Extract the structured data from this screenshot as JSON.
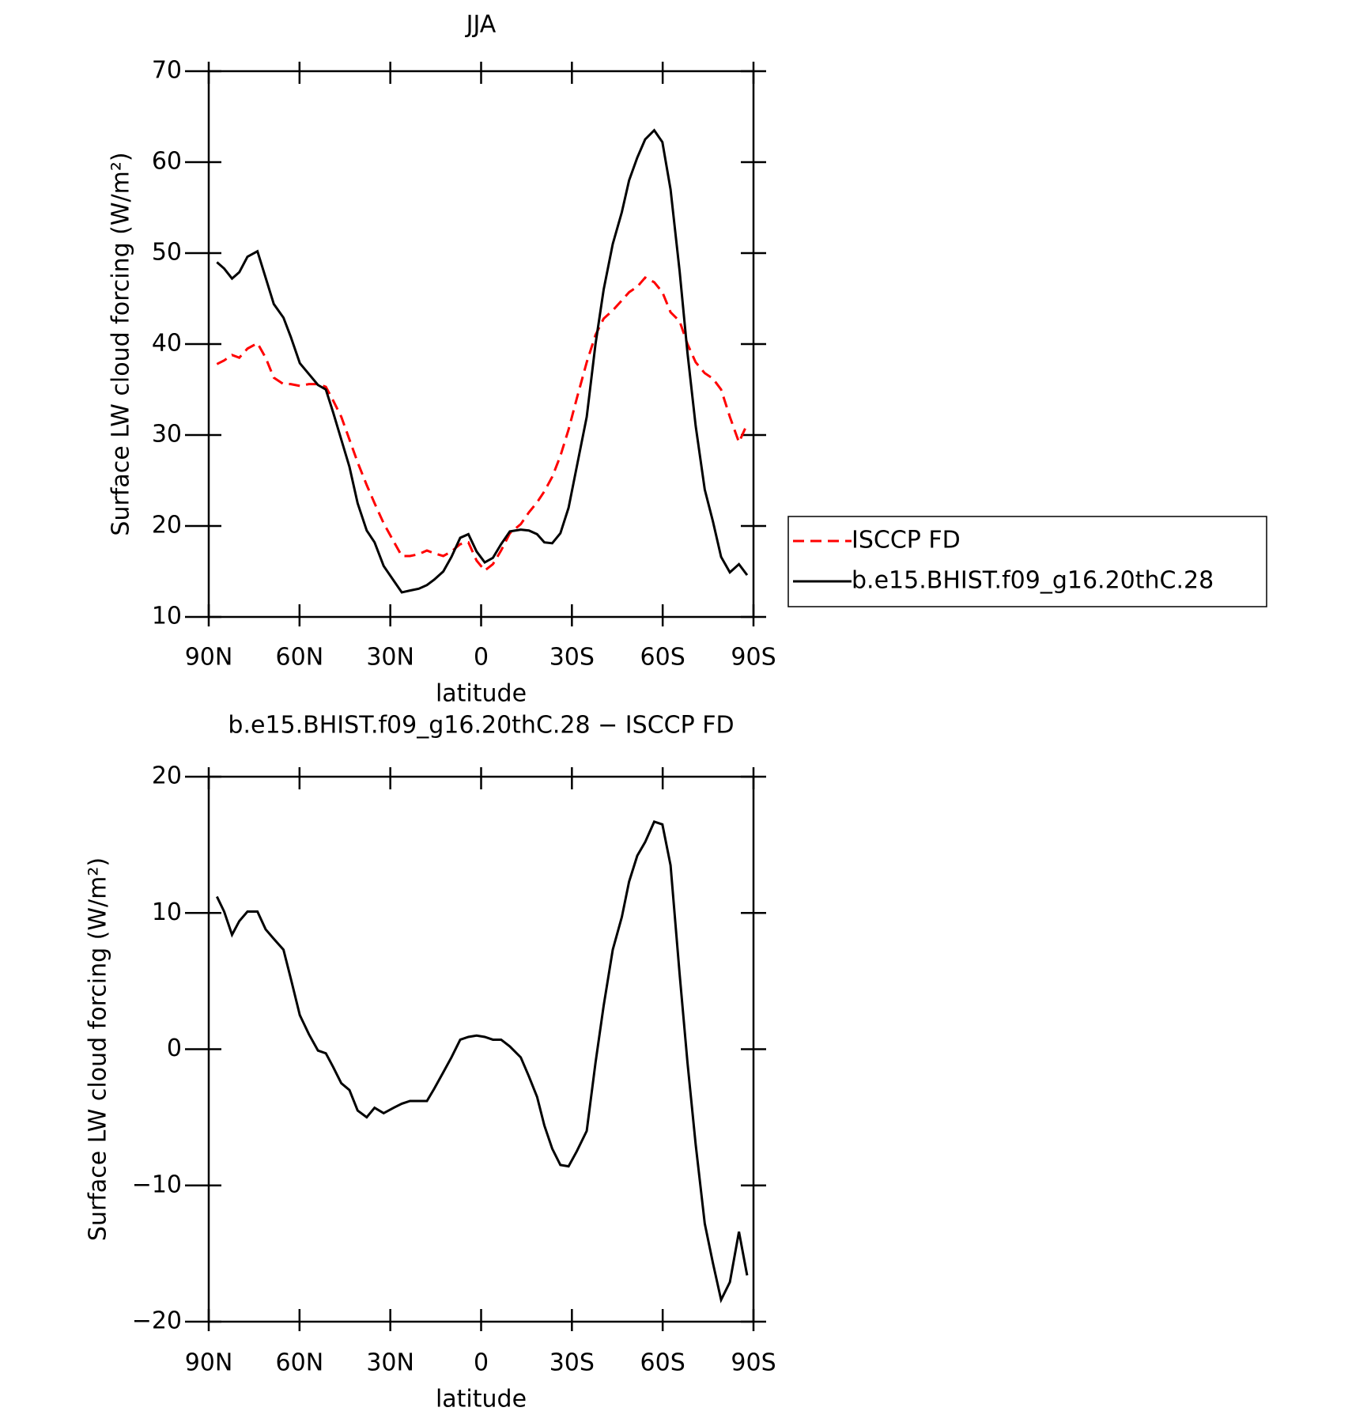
{
  "chart_data": [
    {
      "type": "line",
      "title": "JJA",
      "xlabel": "latitude",
      "ylabel": "Surface LW cloud forcing (W/m²)",
      "xlim": [
        90,
        -90
      ],
      "xticks": [
        {
          "value": 90,
          "label": "90N"
        },
        {
          "value": 60,
          "label": "60N"
        },
        {
          "value": 30,
          "label": "30N"
        },
        0,
        {
          "value": -30,
          "label": "30S"
        },
        {
          "value": -60,
          "label": "60S"
        },
        {
          "value": -90,
          "label": "90S"
        }
      ],
      "ylim": [
        10,
        70
      ],
      "yticks": [
        10,
        20,
        30,
        40,
        50,
        60,
        70
      ],
      "legend": "right",
      "x": [
        87.3,
        84.9,
        82.3,
        79.9,
        77.2,
        73.9,
        71.2,
        68.5,
        65.3,
        62.9,
        59.9,
        56.9,
        53.9,
        51.3,
        48.9,
        46.2,
        43.5,
        40.8,
        37.8,
        35.2,
        32.2,
        28.9,
        26.2,
        23.5,
        20.6,
        17.9,
        15.5,
        12.5,
        9.8,
        6.9,
        4.2,
        1.5,
        -1.2,
        -3.9,
        -6.6,
        -9.5,
        -13.1,
        -15.8,
        -18.5,
        -20.9,
        -23.5,
        -26.2,
        -28.9,
        -31.6,
        -34.9,
        -37.8,
        -40.5,
        -43.5,
        -46.5,
        -48.9,
        -51.6,
        -54.2,
        -57.2,
        -59.9,
        -62.6,
        -65.6,
        -68.2,
        -70.9,
        -73.9,
        -76.6,
        -79.3,
        -82.2,
        -85.2,
        -87.9
      ],
      "series": [
        {
          "name": "ISCCP FD",
          "color": "#ff0000",
          "linestyle": "dashed",
          "values": [
            37.8,
            38.2,
            38.8,
            38.5,
            39.5,
            40.1,
            38.5,
            36.3,
            35.6,
            35.6,
            35.4,
            35.6,
            35.6,
            35.3,
            33.8,
            32,
            29.5,
            27,
            24.5,
            22.5,
            20.3,
            18.3,
            16.7,
            16.7,
            16.9,
            17.3,
            17.0,
            16.7,
            17.2,
            18.0,
            18.2,
            16.2,
            15.1,
            15.8,
            17.3,
            19.2,
            20.2,
            21.5,
            22.6,
            23.8,
            25.4,
            27.7,
            30.6,
            34,
            38,
            41,
            42.8,
            43.7,
            44.8,
            45.7,
            46.3,
            47.3,
            46.8,
            45.7,
            43.5,
            42.5,
            40,
            38,
            36.8,
            36.2,
            35,
            32,
            29.2,
            31.2
          ]
        },
        {
          "name": "b.e15.BHIST.f09_g16.20thC.28",
          "color": "#000000",
          "linestyle": "solid",
          "values": [
            49,
            48.3,
            47.2,
            47.9,
            49.6,
            50.2,
            47.3,
            44.4,
            42.9,
            40.8,
            37.9,
            36.7,
            35.5,
            35.0,
            32.5,
            29.5,
            26.5,
            22.5,
            19.5,
            18.2,
            15.6,
            14,
            12.7,
            12.9,
            13.1,
            13.5,
            14.1,
            15.0,
            16.6,
            18.7,
            19.1,
            17.2,
            16.0,
            16.5,
            18.0,
            19.4,
            19.6,
            19.5,
            19.1,
            18.2,
            18.1,
            19.2,
            22,
            26.5,
            32,
            40,
            46,
            51,
            54.5,
            58,
            60.5,
            62.5,
            63.5,
            62.2,
            57,
            48,
            39,
            31,
            24,
            20.5,
            16.6,
            14.9,
            15.8,
            14.6
          ]
        }
      ]
    },
    {
      "type": "line",
      "title": "b.e15.BHIST.f09_g16.20thC.28 − ISCCP FD",
      "xlabel": "latitude",
      "ylabel": "Surface LW cloud forcing (W/m²)",
      "xlim": [
        90,
        -90
      ],
      "xticks": [
        {
          "value": 90,
          "label": "90N"
        },
        {
          "value": 60,
          "label": "60N"
        },
        {
          "value": 30,
          "label": "30N"
        },
        0,
        {
          "value": -30,
          "label": "30S"
        },
        {
          "value": -60,
          "label": "60S"
        },
        {
          "value": -90,
          "label": "90S"
        }
      ],
      "ylim": [
        -20,
        20
      ],
      "yticks": [
        {
          "value": -20,
          "label": "−20"
        },
        {
          "value": -10,
          "label": "−10"
        },
        0,
        10,
        20
      ],
      "x": [
        87.3,
        84.9,
        82.3,
        79.9,
        77.2,
        73.9,
        71.2,
        68.5,
        65.3,
        62.9,
        59.9,
        56.9,
        53.9,
        51.3,
        48.9,
        46.2,
        43.5,
        40.8,
        37.8,
        35.2,
        32.2,
        28.9,
        26.2,
        23.5,
        20.6,
        17.9,
        15.5,
        12.5,
        9.8,
        6.9,
        4.2,
        1.5,
        -1.2,
        -3.9,
        -6.6,
        -9.5,
        -13.1,
        -15.8,
        -18.5,
        -20.9,
        -23.5,
        -26.2,
        -28.9,
        -31.6,
        -34.9,
        -37.8,
        -40.5,
        -43.5,
        -46.5,
        -48.9,
        -51.6,
        -54.2,
        -57.2,
        -59.9,
        -62.6,
        -65.6,
        -68.2,
        -70.9,
        -73.9,
        -76.6,
        -79.3,
        -82.2,
        -85.2,
        -87.9
      ],
      "series": [
        {
          "color": "#000000",
          "linestyle": "solid",
          "values": [
            11.2,
            10.1,
            8.4,
            9.4,
            10.1,
            10.1,
            8.8,
            8.1,
            7.3,
            5.2,
            2.5,
            1.1,
            -0.1,
            -0.3,
            -1.3,
            -2.5,
            -3.0,
            -4.5,
            -5.0,
            -4.3,
            -4.7,
            -4.3,
            -4.0,
            -3.8,
            -3.8,
            -3.8,
            -2.9,
            -1.7,
            -0.6,
            0.7,
            0.9,
            1.0,
            0.9,
            0.7,
            0.7,
            0.2,
            -0.6,
            -2.0,
            -3.5,
            -5.6,
            -7.3,
            -8.5,
            -8.6,
            -7.5,
            -6.0,
            -1.0,
            3.2,
            7.3,
            9.7,
            12.3,
            14.2,
            15.2,
            16.7,
            16.5,
            13.5,
            5.5,
            -1.0,
            -7.0,
            -12.8,
            -15.7,
            -18.4,
            -17.1,
            -13.4,
            -16.6
          ]
        }
      ]
    }
  ]
}
